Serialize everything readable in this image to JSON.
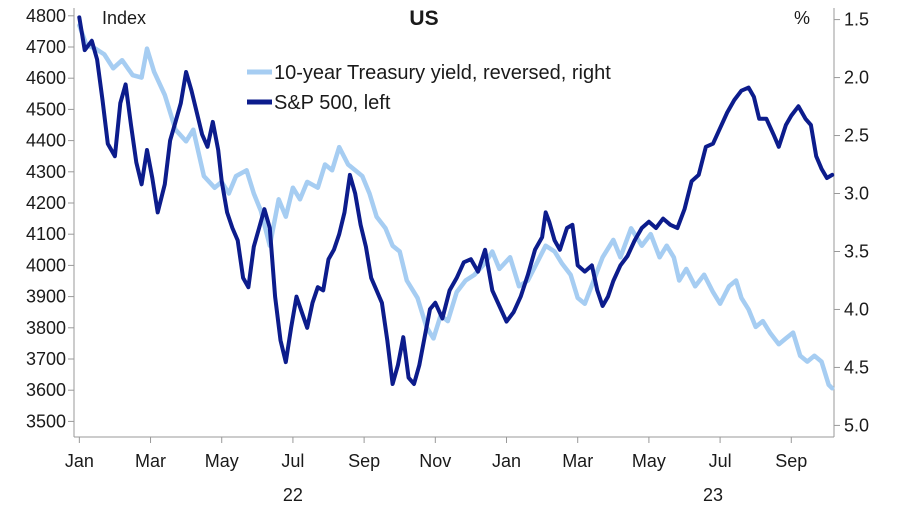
{
  "chart_data": {
    "type": "line",
    "title": "US",
    "left_axis": {
      "label": "Index",
      "min": 3450,
      "max": 4825,
      "ticks": [
        4800,
        4700,
        4600,
        4500,
        4400,
        4300,
        4200,
        4100,
        4000,
        3900,
        3800,
        3700,
        3600,
        3500
      ]
    },
    "right_axis": {
      "label": "%",
      "reversed": true,
      "min": 1.4,
      "max": 5.1,
      "ticks": [
        "1.5",
        "2.0",
        "2.5",
        "3.0",
        "3.5",
        "4.0",
        "4.5",
        "5.0"
      ]
    },
    "x_axis": {
      "months": [
        {
          "label": "Jan",
          "t": 0
        },
        {
          "label": "Mar",
          "t": 2
        },
        {
          "label": "May",
          "t": 4
        },
        {
          "label": "Jul",
          "t": 6
        },
        {
          "label": "Sep",
          "t": 8
        },
        {
          "label": "Nov",
          "t": 10
        },
        {
          "label": "Jan",
          "t": 12
        },
        {
          "label": "Mar",
          "t": 14
        },
        {
          "label": "May",
          "t": 16
        },
        {
          "label": "Jul",
          "t": 18
        },
        {
          "label": "Sep",
          "t": 20
        }
      ],
      "years": [
        {
          "label": "22",
          "t": 6
        },
        {
          "label": "23",
          "t": 17.8
        }
      ],
      "t_min": -0.15,
      "t_max": 21.2
    },
    "legend": [
      {
        "label": "10-year Treasury yield, reversed, right",
        "color": "#a6cdf2"
      },
      {
        "label": "S&P 500, left",
        "color": "#0c1c8c"
      }
    ],
    "series": [
      {
        "name": "10-year Treasury yield, reversed, right",
        "axis": "right",
        "color": "#a6cdf2",
        "points": [
          [
            0,
            1.55
          ],
          [
            0.2,
            1.72
          ],
          [
            0.45,
            1.75
          ],
          [
            0.7,
            1.8
          ],
          [
            0.95,
            1.92
          ],
          [
            1.2,
            1.85
          ],
          [
            1.5,
            1.98
          ],
          [
            1.75,
            2.0
          ],
          [
            1.9,
            1.75
          ],
          [
            2.1,
            1.95
          ],
          [
            2.4,
            2.15
          ],
          [
            2.7,
            2.45
          ],
          [
            3.0,
            2.55
          ],
          [
            3.2,
            2.45
          ],
          [
            3.5,
            2.85
          ],
          [
            3.8,
            2.95
          ],
          [
            4.0,
            2.9
          ],
          [
            4.2,
            3.0
          ],
          [
            4.4,
            2.85
          ],
          [
            4.7,
            2.8
          ],
          [
            4.9,
            3.0
          ],
          [
            5.1,
            3.15
          ],
          [
            5.35,
            3.45
          ],
          [
            5.6,
            3.05
          ],
          [
            5.8,
            3.2
          ],
          [
            6.0,
            2.95
          ],
          [
            6.2,
            3.05
          ],
          [
            6.4,
            2.9
          ],
          [
            6.7,
            2.95
          ],
          [
            6.9,
            2.75
          ],
          [
            7.1,
            2.8
          ],
          [
            7.3,
            2.6
          ],
          [
            7.55,
            2.75
          ],
          [
            7.75,
            2.8
          ],
          [
            7.95,
            2.85
          ],
          [
            8.15,
            3.0
          ],
          [
            8.35,
            3.2
          ],
          [
            8.6,
            3.3
          ],
          [
            8.8,
            3.45
          ],
          [
            9.0,
            3.5
          ],
          [
            9.2,
            3.75
          ],
          [
            9.5,
            3.9
          ],
          [
            9.75,
            4.15
          ],
          [
            9.95,
            4.25
          ],
          [
            10.15,
            4.05
          ],
          [
            10.35,
            4.1
          ],
          [
            10.6,
            3.85
          ],
          [
            10.85,
            3.75
          ],
          [
            11.1,
            3.7
          ],
          [
            11.4,
            3.6
          ],
          [
            11.6,
            3.5
          ],
          [
            11.8,
            3.65
          ],
          [
            12.1,
            3.55
          ],
          [
            12.35,
            3.8
          ],
          [
            12.6,
            3.75
          ],
          [
            12.85,
            3.6
          ],
          [
            13.1,
            3.45
          ],
          [
            13.35,
            3.5
          ],
          [
            13.55,
            3.6
          ],
          [
            13.8,
            3.7
          ],
          [
            14.0,
            3.9
          ],
          [
            14.2,
            3.95
          ],
          [
            14.45,
            3.75
          ],
          [
            14.7,
            3.55
          ],
          [
            15.0,
            3.4
          ],
          [
            15.2,
            3.55
          ],
          [
            15.5,
            3.3
          ],
          [
            15.8,
            3.45
          ],
          [
            16.05,
            3.35
          ],
          [
            16.3,
            3.55
          ],
          [
            16.5,
            3.45
          ],
          [
            16.7,
            3.55
          ],
          [
            16.85,
            3.75
          ],
          [
            17.05,
            3.65
          ],
          [
            17.3,
            3.8
          ],
          [
            17.55,
            3.7
          ],
          [
            17.8,
            3.85
          ],
          [
            18.0,
            3.95
          ],
          [
            18.25,
            3.8
          ],
          [
            18.45,
            3.75
          ],
          [
            18.6,
            3.9
          ],
          [
            18.8,
            4.0
          ],
          [
            19.0,
            4.15
          ],
          [
            19.2,
            4.1
          ],
          [
            19.4,
            4.2
          ],
          [
            19.65,
            4.3
          ],
          [
            19.85,
            4.25
          ],
          [
            20.05,
            4.2
          ],
          [
            20.25,
            4.4
          ],
          [
            20.45,
            4.45
          ],
          [
            20.65,
            4.4
          ],
          [
            20.85,
            4.45
          ],
          [
            21.05,
            4.65
          ],
          [
            21.15,
            4.68
          ]
        ]
      },
      {
        "name": "S&P 500, left",
        "axis": "left",
        "color": "#0c1c8c",
        "points": [
          [
            0,
            4795
          ],
          [
            0.15,
            4690
          ],
          [
            0.35,
            4720
          ],
          [
            0.5,
            4660
          ],
          [
            0.65,
            4530
          ],
          [
            0.8,
            4390
          ],
          [
            1.0,
            4350
          ],
          [
            1.15,
            4520
          ],
          [
            1.3,
            4580
          ],
          [
            1.45,
            4450
          ],
          [
            1.6,
            4330
          ],
          [
            1.75,
            4260
          ],
          [
            1.9,
            4370
          ],
          [
            2.05,
            4280
          ],
          [
            2.2,
            4170
          ],
          [
            2.4,
            4260
          ],
          [
            2.55,
            4400
          ],
          [
            2.7,
            4460
          ],
          [
            2.85,
            4520
          ],
          [
            3.0,
            4620
          ],
          [
            3.15,
            4560
          ],
          [
            3.3,
            4490
          ],
          [
            3.45,
            4420
          ],
          [
            3.6,
            4380
          ],
          [
            3.75,
            4460
          ],
          [
            3.9,
            4370
          ],
          [
            4.0,
            4270
          ],
          [
            4.15,
            4170
          ],
          [
            4.3,
            4120
          ],
          [
            4.45,
            4080
          ],
          [
            4.6,
            3960
          ],
          [
            4.75,
            3930
          ],
          [
            4.9,
            4060
          ],
          [
            5.05,
            4120
          ],
          [
            5.2,
            4180
          ],
          [
            5.35,
            4120
          ],
          [
            5.5,
            3900
          ],
          [
            5.65,
            3760
          ],
          [
            5.8,
            3690
          ],
          [
            5.95,
            3800
          ],
          [
            6.1,
            3900
          ],
          [
            6.25,
            3850
          ],
          [
            6.4,
            3800
          ],
          [
            6.55,
            3880
          ],
          [
            6.7,
            3930
          ],
          [
            6.85,
            3920
          ],
          [
            7.0,
            4020
          ],
          [
            7.15,
            4050
          ],
          [
            7.3,
            4100
          ],
          [
            7.45,
            4170
          ],
          [
            7.6,
            4290
          ],
          [
            7.75,
            4230
          ],
          [
            7.9,
            4130
          ],
          [
            8.05,
            4060
          ],
          [
            8.2,
            3960
          ],
          [
            8.35,
            3920
          ],
          [
            8.5,
            3880
          ],
          [
            8.65,
            3760
          ],
          [
            8.8,
            3620
          ],
          [
            8.95,
            3680
          ],
          [
            9.1,
            3770
          ],
          [
            9.25,
            3640
          ],
          [
            9.4,
            3620
          ],
          [
            9.55,
            3680
          ],
          [
            9.7,
            3770
          ],
          [
            9.85,
            3860
          ],
          [
            10.0,
            3880
          ],
          [
            10.2,
            3830
          ],
          [
            10.4,
            3920
          ],
          [
            10.6,
            3960
          ],
          [
            10.8,
            4010
          ],
          [
            11.0,
            4020
          ],
          [
            11.2,
            3980
          ],
          [
            11.4,
            4050
          ],
          [
            11.6,
            3920
          ],
          [
            11.8,
            3870
          ],
          [
            12.0,
            3820
          ],
          [
            12.2,
            3850
          ],
          [
            12.4,
            3900
          ],
          [
            12.6,
            3970
          ],
          [
            12.8,
            4050
          ],
          [
            13.0,
            4090
          ],
          [
            13.1,
            4170
          ],
          [
            13.2,
            4140
          ],
          [
            13.35,
            4080
          ],
          [
            13.5,
            4050
          ],
          [
            13.7,
            4120
          ],
          [
            13.85,
            4130
          ],
          [
            14.0,
            4000
          ],
          [
            14.2,
            3980
          ],
          [
            14.4,
            4000
          ],
          [
            14.55,
            3920
          ],
          [
            14.7,
            3870
          ],
          [
            14.85,
            3900
          ],
          [
            15.0,
            3950
          ],
          [
            15.2,
            4000
          ],
          [
            15.4,
            4030
          ],
          [
            15.6,
            4080
          ],
          [
            15.8,
            4120
          ],
          [
            16.0,
            4140
          ],
          [
            16.2,
            4120
          ],
          [
            16.4,
            4150
          ],
          [
            16.6,
            4130
          ],
          [
            16.8,
            4120
          ],
          [
            17.0,
            4180
          ],
          [
            17.2,
            4270
          ],
          [
            17.4,
            4290
          ],
          [
            17.6,
            4380
          ],
          [
            17.8,
            4390
          ],
          [
            18.0,
            4440
          ],
          [
            18.2,
            4490
          ],
          [
            18.4,
            4530
          ],
          [
            18.6,
            4560
          ],
          [
            18.8,
            4570
          ],
          [
            18.95,
            4540
          ],
          [
            19.1,
            4470
          ],
          [
            19.3,
            4470
          ],
          [
            19.5,
            4420
          ],
          [
            19.65,
            4380
          ],
          [
            19.85,
            4450
          ],
          [
            20.0,
            4480
          ],
          [
            20.2,
            4510
          ],
          [
            20.4,
            4470
          ],
          [
            20.55,
            4450
          ],
          [
            20.7,
            4350
          ],
          [
            20.85,
            4310
          ],
          [
            21.0,
            4280
          ],
          [
            21.15,
            4290
          ]
        ]
      }
    ]
  }
}
